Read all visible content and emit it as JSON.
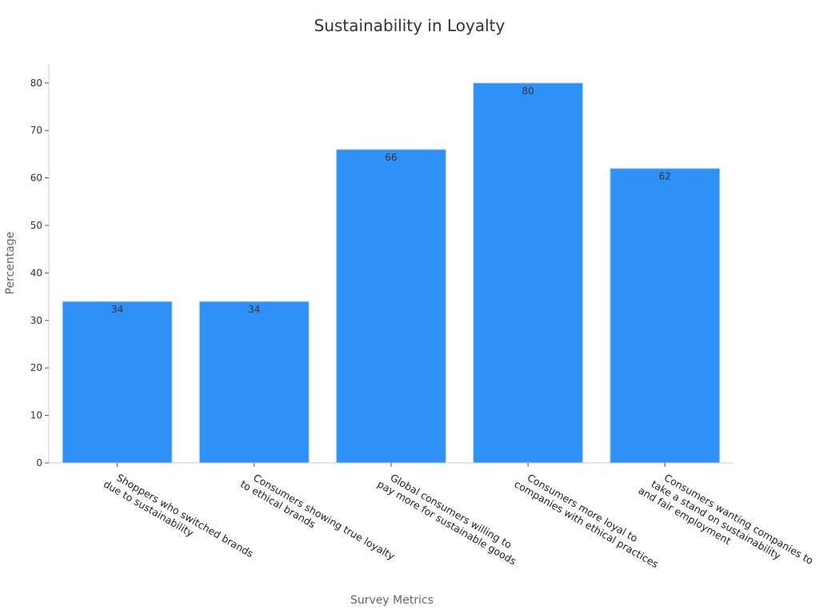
{
  "chart_data": {
    "type": "bar",
    "title": "Sustainability in Loyalty",
    "xlabel": "Survey Metrics",
    "ylabel": "Percentage",
    "categories": [
      [
        "Shoppers who switched brands",
        "due to sustainability"
      ],
      [
        "Consumers showing true loyalty",
        "to ethical brands"
      ],
      [
        "Global consumers willing to",
        "pay more for sustainable goods"
      ],
      [
        "Consumers more loyal to",
        "companies with ethical practices"
      ],
      [
        "Consumers wanting companies to",
        "take a stand on sustainability",
        "and fair employment"
      ]
    ],
    "values": [
      34,
      34,
      66,
      80,
      62
    ],
    "ylim": [
      0,
      84
    ],
    "yticks": [
      0,
      10,
      20,
      30,
      40,
      50,
      60,
      70,
      80
    ],
    "grid": false,
    "bar_color": "#2f90f7",
    "data_labels": true
  }
}
